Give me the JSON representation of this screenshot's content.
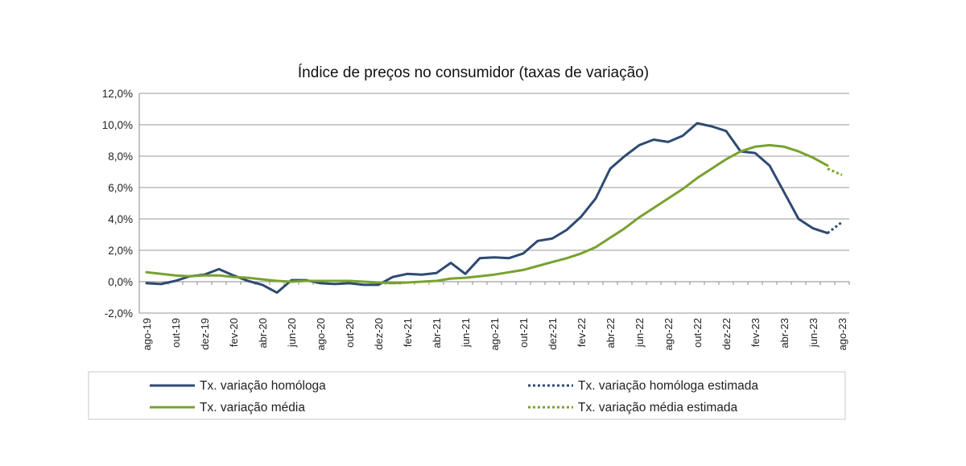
{
  "chart_data": {
    "type": "line",
    "title": "Índice de preços no consumidor  (taxas  de variação)",
    "xlabel": "",
    "ylabel": "",
    "ylim": [
      -2.0,
      12.0
    ],
    "ytick_labels": [
      "-2,0%",
      "0,0%",
      "2,0%",
      "4,0%",
      "6,0%",
      "8,0%",
      "10,0%",
      "12,0%"
    ],
    "ytick_values": [
      -2,
      0,
      2,
      4,
      6,
      8,
      10,
      12
    ],
    "grid": true,
    "legend_position": "bottom",
    "months": [
      "ago-19",
      "set-19",
      "out-19",
      "nov-19",
      "dez-19",
      "jan-20",
      "fev-20",
      "mar-20",
      "abr-20",
      "mai-20",
      "jun-20",
      "jul-20",
      "ago-20",
      "set-20",
      "out-20",
      "nov-20",
      "dez-20",
      "jan-21",
      "fev-21",
      "mar-21",
      "abr-21",
      "mai-21",
      "jun-21",
      "jul-21",
      "ago-21",
      "set-21",
      "out-21",
      "nov-21",
      "dez-21",
      "jan-22",
      "fev-22",
      "mar-22",
      "abr-22",
      "mai-22",
      "jun-22",
      "jul-22",
      "ago-22",
      "set-22",
      "out-22",
      "nov-22",
      "dez-22",
      "jan-23",
      "fev-23",
      "mar-23",
      "abr-23",
      "mai-23",
      "jun-23",
      "jul-23",
      "ago-23"
    ],
    "xtick_labels": [
      "ago-19",
      "out-19",
      "dez-19",
      "fev-20",
      "abr-20",
      "jun-20",
      "ago-20",
      "out-20",
      "dez-20",
      "fev-21",
      "abr-21",
      "jun-21",
      "ago-21",
      "out-21",
      "dez-21",
      "fev-22",
      "abr-22",
      "jun-22",
      "ago-22",
      "out-22",
      "dez-22",
      "fev-23",
      "abr-23",
      "jun-23",
      "ago-23"
    ],
    "series": [
      {
        "name": "Tx. variação homóloga",
        "color": "#2e4a72",
        "style": "solid",
        "values": [
          -0.1,
          -0.15,
          0.05,
          0.35,
          0.45,
          0.8,
          0.4,
          0.05,
          -0.2,
          -0.7,
          0.1,
          0.1,
          -0.1,
          -0.15,
          -0.1,
          -0.2,
          -0.2,
          0.3,
          0.5,
          0.45,
          0.55,
          1.2,
          0.5,
          1.5,
          1.55,
          1.5,
          1.8,
          2.6,
          2.75,
          3.3,
          4.15,
          5.3,
          7.2,
          8.0,
          8.7,
          9.05,
          8.9,
          9.3,
          10.1,
          9.9,
          9.6,
          8.3,
          8.2,
          7.4,
          5.7,
          4.0,
          3.4,
          3.1,
          null
        ]
      },
      {
        "name": "Tx. variação homóloga estimada",
        "color": "#2e4a72",
        "style": "dotted",
        "values": [
          null,
          null,
          null,
          null,
          null,
          null,
          null,
          null,
          null,
          null,
          null,
          null,
          null,
          null,
          null,
          null,
          null,
          null,
          null,
          null,
          null,
          null,
          null,
          null,
          null,
          null,
          null,
          null,
          null,
          null,
          null,
          null,
          null,
          null,
          null,
          null,
          null,
          null,
          null,
          null,
          null,
          null,
          null,
          null,
          null,
          null,
          null,
          3.1,
          3.8
        ]
      },
      {
        "name": "Tx. variação média",
        "color": "#78a22f",
        "style": "solid",
        "values": [
          0.6,
          0.5,
          0.4,
          0.35,
          0.4,
          0.4,
          0.3,
          0.25,
          0.15,
          0.05,
          0.0,
          0.05,
          0.05,
          0.05,
          0.05,
          0.0,
          -0.05,
          -0.1,
          -0.05,
          0.0,
          0.05,
          0.2,
          0.25,
          0.35,
          0.45,
          0.6,
          0.75,
          1.0,
          1.25,
          1.5,
          1.8,
          2.2,
          2.8,
          3.4,
          4.1,
          4.7,
          5.3,
          5.9,
          6.6,
          7.2,
          7.8,
          8.3,
          8.6,
          8.7,
          8.6,
          8.3,
          7.9,
          7.4,
          null
        ]
      },
      {
        "name": "Tx. variação média  estimada",
        "color": "#78a22f",
        "style": "dotted",
        "values": [
          null,
          null,
          null,
          null,
          null,
          null,
          null,
          null,
          null,
          null,
          null,
          null,
          null,
          null,
          null,
          null,
          null,
          null,
          null,
          null,
          null,
          null,
          null,
          null,
          null,
          null,
          null,
          null,
          null,
          null,
          null,
          null,
          null,
          null,
          null,
          null,
          null,
          null,
          null,
          null,
          null,
          null,
          null,
          null,
          null,
          null,
          null,
          7.2,
          6.8
        ]
      }
    ]
  }
}
